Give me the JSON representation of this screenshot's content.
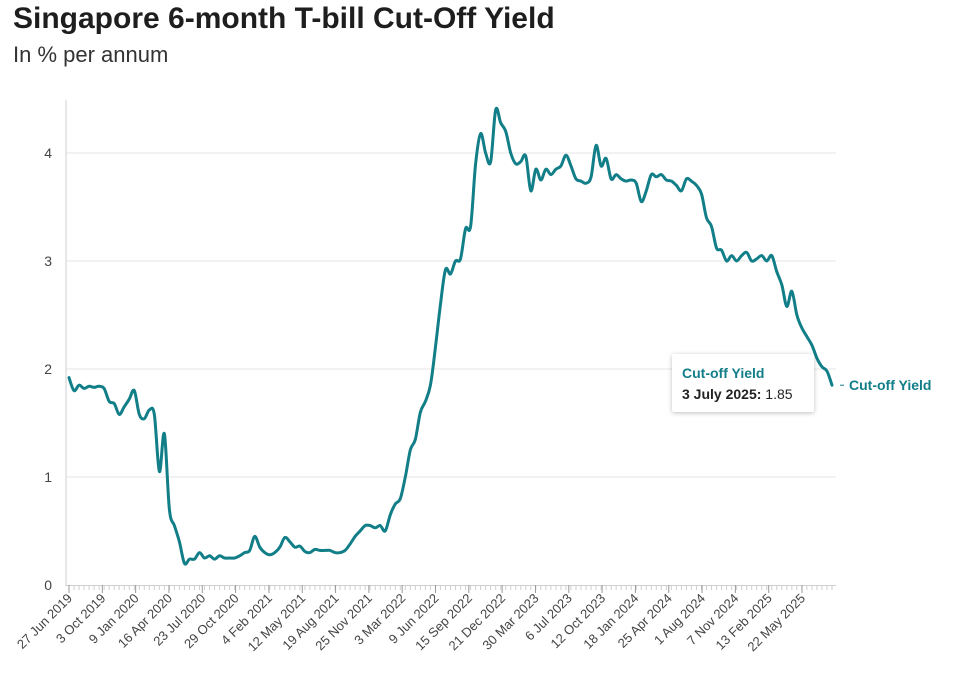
{
  "title": "Singapore 6-month T-bill Cut-Off Yield",
  "subtitle": "In % per annum",
  "tooltip": {
    "series": "Cut-off Yield",
    "date": "3 July 2025:",
    "value": "1.85"
  },
  "colors": {
    "line": "#117e88",
    "grid": "#e6e6e6",
    "axis": "#444444"
  },
  "chart_data": {
    "type": "line",
    "title": "Singapore 6-month T-bill Cut-Off Yield",
    "subtitle": "In % per annum",
    "xlabel": "",
    "ylabel": "",
    "ylim": [
      0,
      4.5
    ],
    "yticks": [
      "0",
      "1",
      "2",
      "3",
      "4"
    ],
    "grid": true,
    "x_tick_labels": [
      "27 Jun 2019",
      "3 Oct 2019",
      "9 Jan 2020",
      "16 Apr 2020",
      "23 Jul 2020",
      "29 Oct 2020",
      "4 Feb 2021",
      "12 May 2021",
      "19 Aug 2021",
      "25 Nov 2021",
      "3 Mar 2022",
      "9 Jun 2022",
      "15 Sep 2022",
      "21 Dec 2022",
      "30 Mar 2023",
      "6 Jul 2023",
      "12 Oct 2023",
      "18 Jan 2024",
      "25 Apr 2024",
      "1 Aug 2024",
      "7 Nov 2024",
      "13 Feb 2025",
      "22 May 2025"
    ],
    "series": [
      {
        "name": "Cut-off Yield",
        "end_label": "Cut-off Yield",
        "values": [
          [
            0,
            1.92
          ],
          [
            1,
            1.8
          ],
          [
            2,
            1.85
          ],
          [
            3,
            1.82
          ],
          [
            4,
            1.84
          ],
          [
            5,
            1.83
          ],
          [
            6,
            1.84
          ],
          [
            7,
            1.82
          ],
          [
            8,
            1.7
          ],
          [
            9,
            1.68
          ],
          [
            10,
            1.58
          ],
          [
            11,
            1.65
          ],
          [
            12,
            1.72
          ],
          [
            13,
            1.8
          ],
          [
            14,
            1.58
          ],
          [
            15,
            1.54
          ],
          [
            16,
            1.62
          ],
          [
            17,
            1.58
          ],
          [
            18,
            1.05
          ],
          [
            19,
            1.4
          ],
          [
            20,
            0.7
          ],
          [
            21,
            0.55
          ],
          [
            22,
            0.4
          ],
          [
            23,
            0.2
          ],
          [
            24,
            0.24
          ],
          [
            25,
            0.24
          ],
          [
            26,
            0.3
          ],
          [
            27,
            0.25
          ],
          [
            28,
            0.27
          ],
          [
            29,
            0.24
          ],
          [
            30,
            0.27
          ],
          [
            31,
            0.25
          ],
          [
            32,
            0.25
          ],
          [
            33,
            0.25
          ],
          [
            34,
            0.27
          ],
          [
            35,
            0.3
          ],
          [
            36,
            0.32
          ],
          [
            37,
            0.45
          ],
          [
            38,
            0.35
          ],
          [
            39,
            0.3
          ],
          [
            40,
            0.28
          ],
          [
            41,
            0.3
          ],
          [
            42,
            0.35
          ],
          [
            43,
            0.44
          ],
          [
            44,
            0.4
          ],
          [
            45,
            0.35
          ],
          [
            46,
            0.36
          ],
          [
            47,
            0.31
          ],
          [
            48,
            0.3
          ],
          [
            49,
            0.33
          ],
          [
            50,
            0.32
          ],
          [
            51,
            0.32
          ],
          [
            52,
            0.32
          ],
          [
            53,
            0.3
          ],
          [
            54,
            0.3
          ],
          [
            55,
            0.32
          ],
          [
            56,
            0.38
          ],
          [
            57,
            0.45
          ],
          [
            58,
            0.5
          ],
          [
            59,
            0.55
          ],
          [
            60,
            0.55
          ],
          [
            61,
            0.53
          ],
          [
            62,
            0.55
          ],
          [
            63,
            0.5
          ],
          [
            64,
            0.65
          ],
          [
            65,
            0.75
          ],
          [
            66,
            0.8
          ],
          [
            67,
            1.0
          ],
          [
            68,
            1.25
          ],
          [
            69,
            1.35
          ],
          [
            70,
            1.6
          ],
          [
            71,
            1.7
          ],
          [
            72,
            1.85
          ],
          [
            73,
            2.2
          ],
          [
            74,
            2.6
          ],
          [
            75,
            2.92
          ],
          [
            76,
            2.88
          ],
          [
            77,
            3.0
          ],
          [
            78,
            3.02
          ],
          [
            79,
            3.3
          ],
          [
            80,
            3.32
          ],
          [
            81,
            3.9
          ],
          [
            82,
            4.18
          ],
          [
            83,
            4.0
          ],
          [
            84,
            3.92
          ],
          [
            85,
            4.4
          ],
          [
            86,
            4.28
          ],
          [
            87,
            4.2
          ],
          [
            88,
            4.0
          ],
          [
            89,
            3.9
          ],
          [
            90,
            3.92
          ],
          [
            91,
            3.97
          ],
          [
            92,
            3.65
          ],
          [
            93,
            3.85
          ],
          [
            94,
            3.75
          ],
          [
            95,
            3.85
          ],
          [
            96,
            3.8
          ],
          [
            97,
            3.85
          ],
          [
            98,
            3.88
          ],
          [
            99,
            3.98
          ],
          [
            100,
            3.88
          ],
          [
            101,
            3.76
          ],
          [
            102,
            3.74
          ],
          [
            103,
            3.72
          ],
          [
            104,
            3.78
          ],
          [
            105,
            4.07
          ],
          [
            106,
            3.88
          ],
          [
            107,
            3.95
          ],
          [
            108,
            3.76
          ],
          [
            109,
            3.8
          ],
          [
            110,
            3.76
          ],
          [
            111,
            3.74
          ],
          [
            112,
            3.75
          ],
          [
            113,
            3.72
          ],
          [
            114,
            3.55
          ],
          [
            115,
            3.65
          ],
          [
            116,
            3.8
          ],
          [
            117,
            3.78
          ],
          [
            118,
            3.8
          ],
          [
            119,
            3.75
          ],
          [
            120,
            3.74
          ],
          [
            121,
            3.7
          ],
          [
            122,
            3.65
          ],
          [
            123,
            3.76
          ],
          [
            124,
            3.74
          ],
          [
            125,
            3.7
          ],
          [
            126,
            3.62
          ],
          [
            127,
            3.4
          ],
          [
            128,
            3.32
          ],
          [
            129,
            3.12
          ],
          [
            130,
            3.1
          ],
          [
            131,
            3.0
          ],
          [
            132,
            3.05
          ],
          [
            133,
            3.0
          ],
          [
            134,
            3.05
          ],
          [
            135,
            3.08
          ],
          [
            136,
            3.0
          ],
          [
            137,
            3.02
          ],
          [
            138,
            3.05
          ],
          [
            139,
            3.0
          ],
          [
            140,
            3.05
          ],
          [
            141,
            2.9
          ],
          [
            142,
            2.78
          ],
          [
            143,
            2.58
          ],
          [
            144,
            2.72
          ],
          [
            145,
            2.5
          ],
          [
            146,
            2.38
          ],
          [
            147,
            2.3
          ],
          [
            148,
            2.22
          ],
          [
            149,
            2.1
          ],
          [
            150,
            2.02
          ],
          [
            151,
            1.98
          ],
          [
            152,
            1.85
          ]
        ]
      }
    ]
  }
}
